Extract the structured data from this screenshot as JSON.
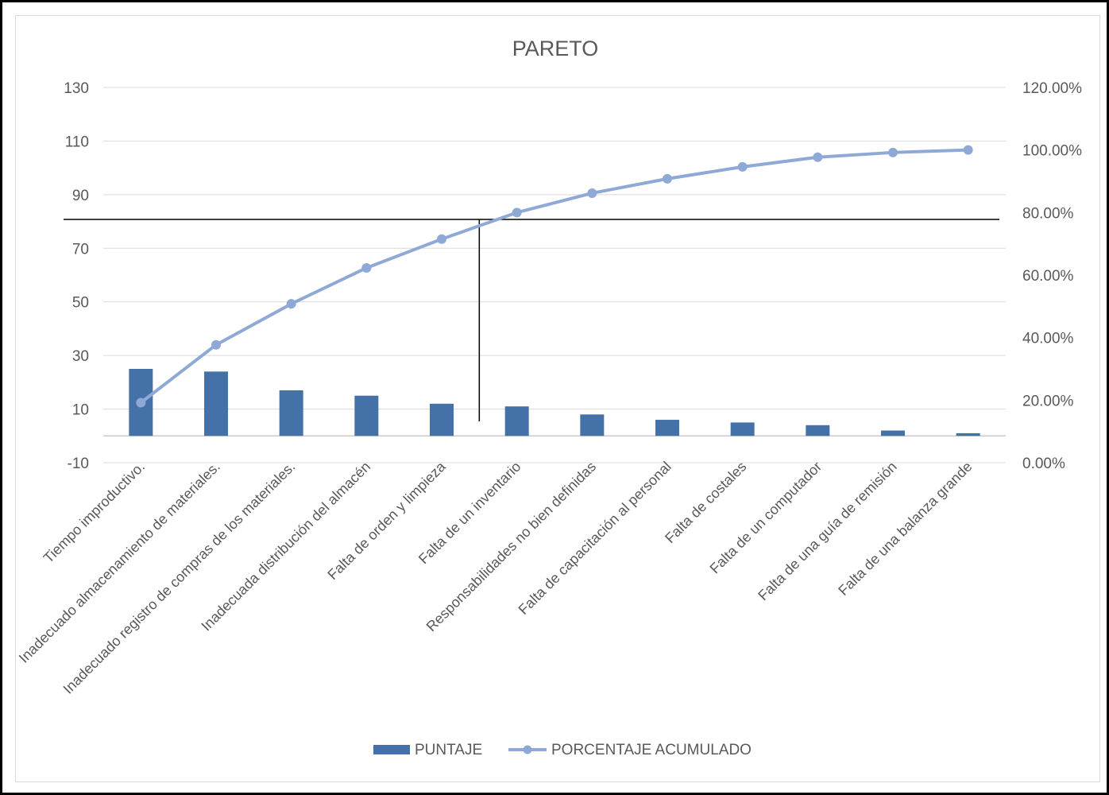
{
  "chart_data": {
    "type": "bar",
    "title": "PARETO",
    "categories": [
      "Tiempo improductivo.",
      "Inadecuado almacenamiento de materiales.",
      "Inadecuado registro de compras de los materiales.",
      "Inadecuada distribución del almacén",
      "Falta de orden y limpieza",
      "Falta de un inventario",
      "Responsabilidades no bien definidas",
      "Falta de capacitación al personal",
      "Falta de costales",
      "Falta de un computador",
      "Falta de una guía de remisión",
      "Falta de una balanza grande"
    ],
    "series": [
      {
        "name": "PUNTAJE",
        "type": "bar",
        "axis": "left",
        "color": "#4472a8",
        "values": [
          25,
          24,
          17,
          15,
          12,
          11,
          8,
          6,
          5,
          4,
          2,
          1
        ]
      },
      {
        "name": "PORCENTAJE ACUMULADO",
        "type": "line",
        "axis": "right",
        "color": "#8fa9d6",
        "values": [
          19.2,
          37.7,
          50.8,
          62.3,
          71.5,
          80.0,
          86.2,
          90.8,
          94.6,
          97.7,
          99.2,
          100.0
        ]
      }
    ],
    "y_left": {
      "min": -10,
      "max": 130,
      "ticks": [
        "-10",
        "10",
        "30",
        "50",
        "70",
        "90",
        "110",
        "130"
      ]
    },
    "y_right": {
      "min": 0,
      "max": 120,
      "ticks": [
        "0.00%",
        "20.00%",
        "40.00%",
        "60.00%",
        "80.00%",
        "100.00%",
        "120.00%"
      ]
    },
    "reference_line_pct": 80,
    "cutoff_category_index": 5,
    "grid": true,
    "legend_position": "bottom"
  }
}
